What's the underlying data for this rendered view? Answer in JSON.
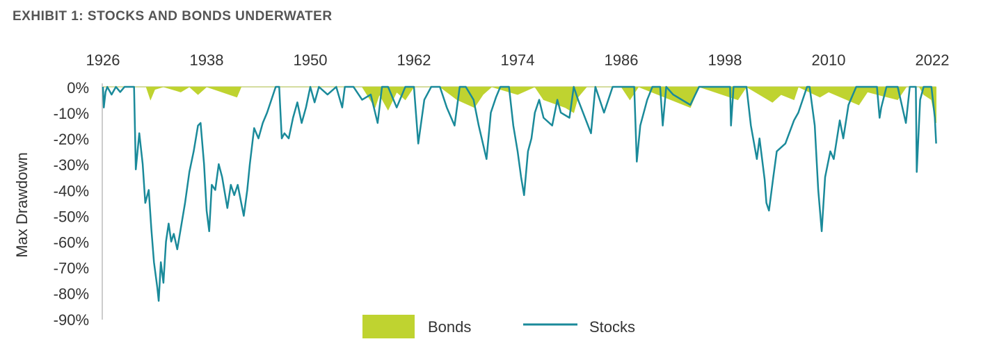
{
  "chart_data": {
    "type": "line",
    "title": "EXHIBIT 1: STOCKS AND BONDS UNDERWATER",
    "y_label": "Max Drawdown",
    "xlim": [
      1926,
      2022
    ],
    "xticks": [
      1926,
      1938,
      1950,
      1962,
      1974,
      1986,
      1998,
      2010,
      2022
    ],
    "ylim": [
      -90,
      0
    ],
    "yticks": [
      {
        "value": 0,
        "label": "0%"
      },
      {
        "value": -10,
        "label": "-10%"
      },
      {
        "value": -20,
        "label": "-20%"
      },
      {
        "value": -30,
        "label": "-30%"
      },
      {
        "value": -40,
        "label": "-40%"
      },
      {
        "value": -50,
        "label": "-50%"
      },
      {
        "value": -60,
        "label": "-60%"
      },
      {
        "value": -70,
        "label": "-70%"
      },
      {
        "value": -80,
        "label": "-80%"
      },
      {
        "value": -90,
        "label": "-90%"
      }
    ],
    "legend": "bottom",
    "series": [
      {
        "name": "Bonds",
        "color": "#bfd330",
        "kind": "area",
        "x": [
          1926,
          1931,
          1931.5,
          1932,
          1933,
          1935,
          1936,
          1937,
          1938,
          1941.5,
          1942,
          1950,
          1956,
          1957.5,
          1958,
          1959,
          1960,
          1961,
          1962,
          1965,
          1967,
          1969,
          1970,
          1971,
          1974,
          1976,
          1977,
          1979.5,
          1980.5,
          1981,
          1982,
          1986,
          1987,
          1988,
          1994,
          1995,
          1999.5,
          2000.5,
          2003.5,
          2004.5,
          2006,
          2006.5,
          2009,
          2010,
          2013.5,
          2014.5,
          2016.8,
          2018,
          2019,
          2020.5,
          2021,
          2021.9,
          2022.2,
          2022.45
        ],
        "values": [
          0,
          0,
          -5,
          -1,
          0,
          -2,
          0,
          -3,
          0,
          -4,
          0,
          0,
          0,
          -8,
          -3,
          -9,
          -2,
          -5,
          0,
          0,
          -5,
          -8,
          -3,
          0,
          -3,
          0,
          -5,
          -8,
          -10,
          -4,
          0,
          0,
          -5,
          0,
          -8,
          0,
          -5,
          0,
          -6,
          -3,
          -5,
          0,
          -4,
          -2,
          -7,
          -2,
          -4,
          -5,
          0,
          0,
          -3,
          -5,
          -10,
          -14
        ]
      },
      {
        "name": "Stocks",
        "color": "#1a8a9a",
        "kind": "line",
        "x": [
          1926,
          1926.1,
          1926.3,
          1926.5,
          1927,
          1927.5,
          1928,
          1928.5,
          1929.6,
          1929.8,
          1930.2,
          1930.6,
          1930.9,
          1931.3,
          1931.6,
          1931.9,
          1932.3,
          1932.45,
          1932.7,
          1933,
          1933.3,
          1933.6,
          1933.9,
          1934.2,
          1934.6,
          1935,
          1935.5,
          1936,
          1936.5,
          1937,
          1937.3,
          1937.7,
          1938,
          1938.3,
          1938.6,
          1939,
          1939.4,
          1939.8,
          1940.4,
          1940.8,
          1941.2,
          1941.6,
          1942,
          1942.3,
          1942.7,
          1943,
          1943.5,
          1944,
          1944.5,
          1945,
          1945.5,
          1946,
          1946.4,
          1946.7,
          1947,
          1947.5,
          1948,
          1948.5,
          1949,
          1949.5,
          1950,
          1950.5,
          1951,
          1952,
          1953,
          1953.7,
          1954,
          1955,
          1956,
          1957,
          1957.8,
          1958.3,
          1959,
          1960,
          1961,
          1962,
          1962.5,
          1963.2,
          1964,
          1965,
          1965.8,
          1966.7,
          1967.3,
          1968,
          1968.9,
          1969.5,
          1970.4,
          1970.9,
          1971.5,
          1972,
          1973,
          1973.5,
          1974,
          1974.4,
          1974.75,
          1975.2,
          1975.6,
          1976,
          1976.5,
          1977,
          1978,
          1978.6,
          1979,
          1980,
          1980.5,
          1981,
          1982.5,
          1983,
          1984,
          1985,
          1986,
          1987.5,
          1987.8,
          1988.2,
          1989,
          1989.6,
          1990.5,
          1990.8,
          1991.2,
          1992,
          1994,
          1995,
          1998.6,
          1998.7,
          1999,
          2000.5,
          2001,
          2001.7,
          2002,
          2002.6,
          2002.8,
          2003.1,
          2003.6,
          2004,
          2005,
          2006,
          2006.5,
          2007.5,
          2007.8,
          2008.4,
          2008.8,
          2009.2,
          2009.6,
          2010.2,
          2010.6,
          2011.3,
          2011.7,
          2012.3,
          2013.2,
          2014,
          2015.6,
          2015.9,
          2016.1,
          2016.7,
          2018,
          2018.95,
          2019.4,
          2020.1,
          2020.2,
          2020.6,
          2021,
          2021.9,
          2022.3,
          2022.45
        ],
        "values": [
          0,
          -8,
          -2,
          0,
          -3,
          0,
          -2,
          0,
          0,
          -32,
          -18,
          -30,
          -45,
          -40,
          -55,
          -68,
          -78,
          -83,
          -68,
          -76,
          -60,
          -53,
          -60,
          -57,
          -63,
          -55,
          -45,
          -33,
          -25,
          -15,
          -14,
          -30,
          -48,
          -56,
          -38,
          -40,
          -30,
          -35,
          -47,
          -38,
          -42,
          -38,
          -45,
          -50,
          -40,
          -30,
          -16,
          -20,
          -14,
          -10,
          -5,
          0,
          0,
          -20,
          -18,
          -20,
          -12,
          -6,
          -14,
          -8,
          0,
          -6,
          0,
          -3,
          0,
          -8,
          0,
          0,
          -5,
          -3,
          -14,
          0,
          0,
          -8,
          0,
          0,
          -22,
          -5,
          0,
          0,
          -8,
          -15,
          0,
          0,
          -5,
          -15,
          -28,
          -10,
          -4,
          0,
          0,
          -15,
          -25,
          -35,
          -42,
          -25,
          -20,
          -10,
          -5,
          -12,
          -15,
          -5,
          -10,
          -12,
          0,
          -5,
          -18,
          0,
          -10,
          0,
          0,
          0,
          -29,
          -15,
          -5,
          0,
          0,
          -15,
          0,
          -3,
          -7,
          0,
          0,
          -15,
          0,
          0,
          -15,
          -28,
          -20,
          -36,
          -45,
          -48,
          -35,
          -25,
          -22,
          -13,
          -10,
          0,
          0,
          -15,
          -40,
          -56,
          -35,
          -25,
          -28,
          -13,
          -20,
          -7,
          0,
          0,
          0,
          -12,
          -8,
          0,
          0,
          -14,
          0,
          0,
          -33,
          -5,
          0,
          0,
          -12,
          -22
        ]
      }
    ]
  }
}
